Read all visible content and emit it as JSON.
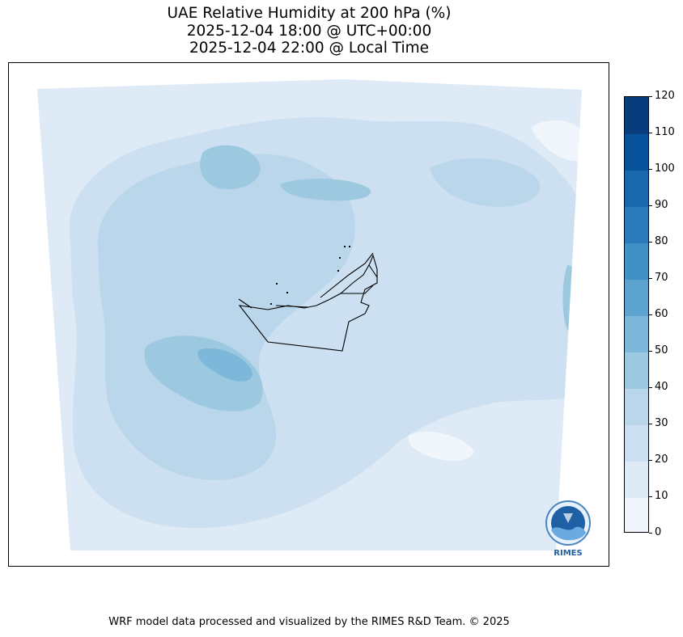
{
  "title": {
    "line1": "UAE Relative Humidity at 200 hPa (%)",
    "line2": "2025-12-04 18:00 @ UTC+00:00",
    "line3": "2025-12-04 22:00 @ Local Time"
  },
  "colorbar": {
    "levels": [
      0,
      10,
      20,
      30,
      40,
      50,
      60,
      70,
      80,
      90,
      100,
      110,
      120
    ],
    "labels": [
      "0",
      "10",
      "20",
      "30",
      "40",
      "50",
      "60",
      "70",
      "80",
      "90",
      "100",
      "110",
      "120"
    ],
    "colors": [
      "#f0f6fc",
      "#deebf7",
      "#cde0f1",
      "#b9d6ea",
      "#9cc9e0",
      "#7db7da",
      "#5ca3d0",
      "#4190c6",
      "#2b7bba",
      "#1968ad",
      "#08529b",
      "#083c7d"
    ]
  },
  "logo": {
    "text": "RIMES"
  },
  "footer": {
    "credit": "WRF model data processed and visualized by the RIMES R&D Team. © 2025"
  }
}
